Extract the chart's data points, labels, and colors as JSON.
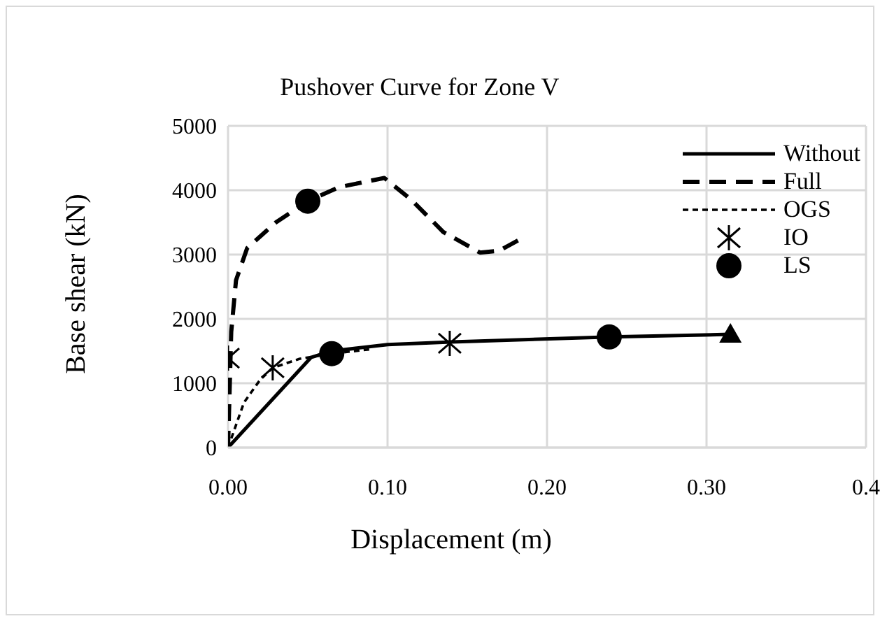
{
  "chart_data": {
    "type": "line",
    "title": "Pushover Curve for Zone V",
    "xlabel": "Displacement (m)",
    "ylabel": "Base shear (kN)",
    "xlim": [
      0,
      0.4
    ],
    "xticks": [
      {
        "value": 0,
        "label": "0.00"
      },
      {
        "value": 0.1,
        "label": "0.10"
      },
      {
        "value": 0.2,
        "label": "0.20"
      },
      {
        "value": 0.3,
        "label": "0.30"
      },
      {
        "value": 0.4,
        "label": "0.4"
      }
    ],
    "ylim": [
      0,
      5000
    ],
    "yticks": [
      0,
      1000,
      2000,
      3000,
      4000,
      5000
    ],
    "grid": true,
    "legend": "top right",
    "series": [
      {
        "name": "Without",
        "color": "#000000",
        "line_style": "solid",
        "marker": "none",
        "x": [
          0,
          0.052,
          0.065,
          0.1,
          0.14,
          0.24,
          0.315
        ],
        "values": [
          0,
          1400,
          1500,
          1600,
          1640,
          1720,
          1760
        ]
      },
      {
        "name": "Full",
        "color": "#000000",
        "line_style": "dashed",
        "marker": "none",
        "x": [
          0,
          0.002,
          0.005,
          0.012,
          0.03,
          0.05,
          0.07,
          0.098,
          0.115,
          0.135,
          0.158,
          0.17,
          0.184
        ],
        "values": [
          0,
          1800,
          2600,
          3100,
          3500,
          3830,
          4050,
          4190,
          3850,
          3350,
          3030,
          3060,
          3250
        ]
      },
      {
        "name": "OGS",
        "color": "#000000",
        "line_style": "dotted",
        "marker": "none",
        "x": [
          0,
          0.01,
          0.02,
          0.028,
          0.045,
          0.065,
          0.09
        ],
        "values": [
          0,
          700,
          1050,
          1240,
          1380,
          1460,
          1530
        ]
      },
      {
        "name": "IO",
        "type": "scatter",
        "color": "#000000",
        "marker": "cross",
        "x": [
          0,
          0.028,
          0.139
        ],
        "values": [
          1390,
          1240,
          1620
        ]
      },
      {
        "name": "LS",
        "type": "scatter",
        "color": "#000000",
        "marker": "circle",
        "x": [
          0.05,
          0.065,
          0.239
        ],
        "values": [
          3830,
          1460,
          1720
        ]
      },
      {
        "type": "scatter",
        "color": "#000000",
        "marker": "triangle",
        "x": [
          0.315
        ],
        "values": [
          1760
        ]
      }
    ]
  }
}
